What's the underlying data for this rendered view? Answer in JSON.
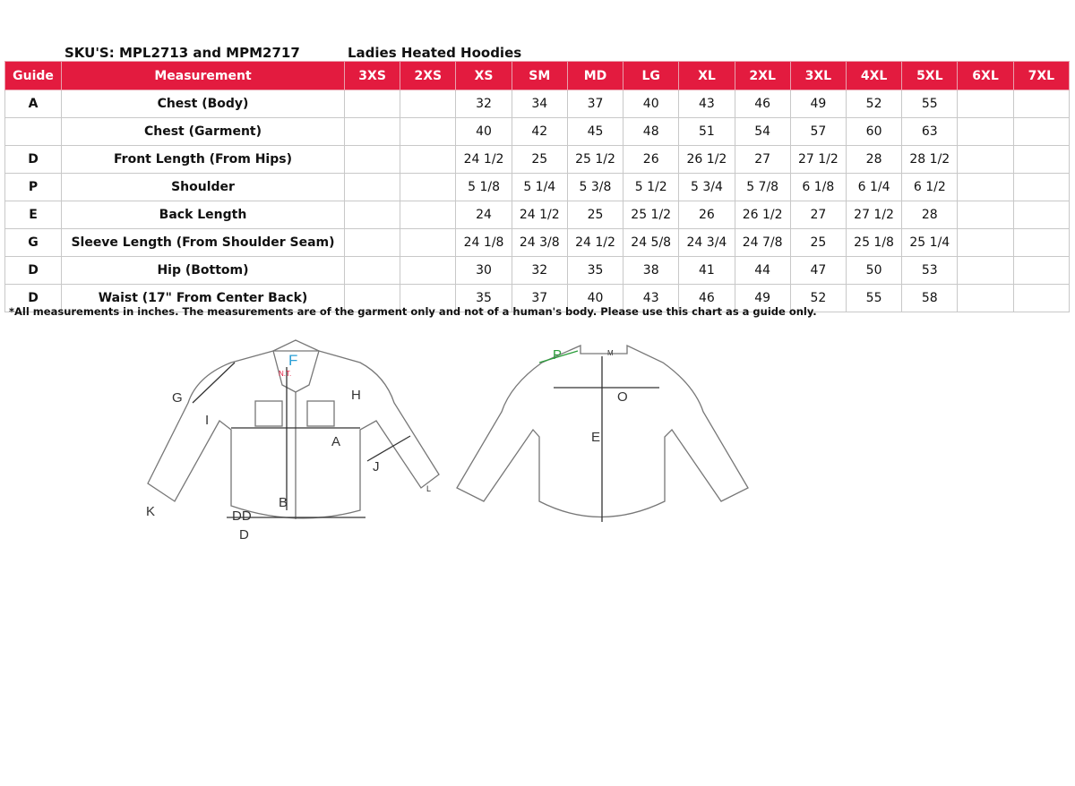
{
  "header": {
    "sku": "SKU'S: MPL2713 and MPM2717",
    "title": "Ladies Heated Hoodies"
  },
  "table": {
    "columns": [
      "Guide",
      "Measurement",
      "3XS",
      "2XS",
      "XS",
      "SM",
      "MD",
      "LG",
      "XL",
      "2XL",
      "3XL",
      "4XL",
      "5XL",
      "6XL",
      "7XL"
    ],
    "rows": [
      [
        "A",
        "Chest (Body)",
        null,
        null,
        "32",
        "34",
        "37",
        "40",
        "43",
        "46",
        "49",
        "52",
        "55",
        null,
        null
      ],
      [
        null,
        "Chest (Garment)",
        null,
        null,
        "40",
        "42",
        "45",
        "48",
        "51",
        "54",
        "57",
        "60",
        "63",
        null,
        null
      ],
      [
        "D",
        "Front Length (From Hips)",
        null,
        null,
        "24 1/2",
        "25",
        "25 1/2",
        "26",
        "26 1/2",
        "27",
        "27 1/2",
        "28",
        "28 1/2",
        null,
        null
      ],
      [
        "P",
        "Shoulder",
        null,
        null,
        "5 1/8",
        "5 1/4",
        "5 3/8",
        "5 1/2",
        "5 3/4",
        "5 7/8",
        "6 1/8",
        "6 1/4",
        "6 1/2",
        null,
        null
      ],
      [
        "E",
        "Back Length",
        null,
        null,
        "24",
        "24 1/2",
        "25",
        "25 1/2",
        "26",
        "26 1/2",
        "27",
        "27 1/2",
        "28",
        null,
        null
      ],
      [
        "G",
        "Sleeve Length (From Shoulder Seam)",
        null,
        null,
        "24 1/8",
        "24 3/8",
        "24 1/2",
        "24 5/8",
        "24 3/4",
        "24 7/8",
        "25",
        "25 1/8",
        "25 1/4",
        null,
        null
      ],
      [
        "D",
        "Hip (Bottom)",
        null,
        null,
        "30",
        "32",
        "35",
        "38",
        "41",
        "44",
        "47",
        "50",
        "53",
        null,
        null
      ],
      [
        "D",
        "Waist (17\" From Center Back)",
        null,
        null,
        "35",
        "37",
        "40",
        "43",
        "46",
        "49",
        "52",
        "55",
        "58",
        null,
        null
      ]
    ]
  },
  "note": "*All measurements in inches. The measurements are of the garment only and not of a human's body. Please use this chart as a guide only.",
  "diagram": {
    "labels": [
      "G",
      "I",
      "H",
      "A",
      "J",
      "K",
      "L",
      "B",
      "DD",
      "D",
      "F",
      "N.T.",
      "P",
      "M",
      "O",
      "E"
    ]
  }
}
